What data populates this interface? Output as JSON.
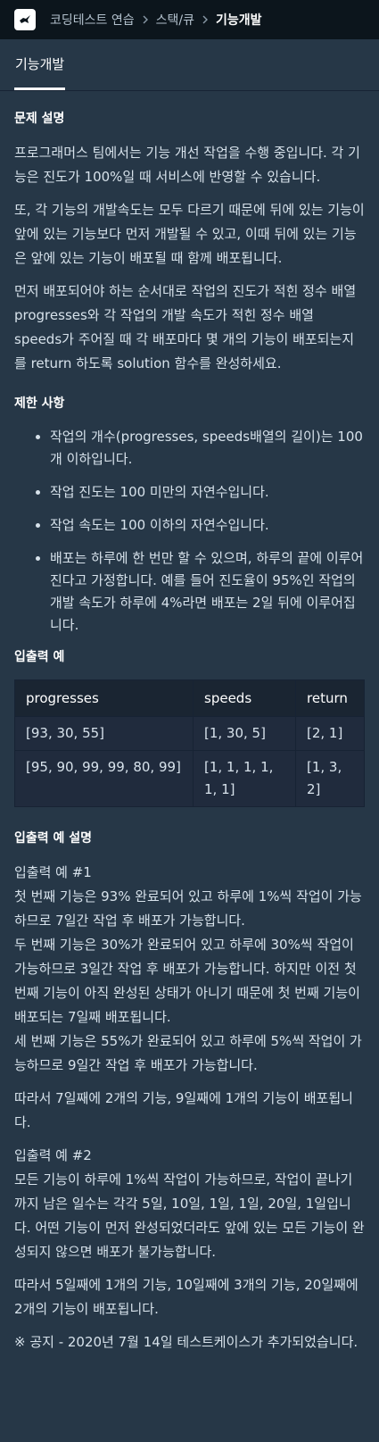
{
  "breadcrumb": {
    "items": [
      "코딩테스트 연습",
      "스택/큐",
      "기능개발"
    ]
  },
  "tab": {
    "label": "기능개발"
  },
  "problem": {
    "heading": "문제 설명",
    "paragraphs": [
      "프로그래머스 팀에서는 기능 개선 작업을 수행 중입니다. 각 기능은 진도가 100%일 때 서비스에 반영할 수 있습니다.",
      "또, 각 기능의 개발속도는 모두 다르기 때문에 뒤에 있는 기능이 앞에 있는 기능보다 먼저 개발될 수 있고, 이때 뒤에 있는 기능은 앞에 있는 기능이 배포될 때 함께 배포됩니다.",
      "먼저 배포되어야 하는 순서대로 작업의 진도가 적힌 정수 배열 progresses와 각 작업의 개발 속도가 적힌 정수 배열 speeds가 주어질 때 각 배포마다 몇 개의 기능이 배포되는지를 return 하도록 solution 함수를 완성하세요."
    ]
  },
  "constraints": {
    "heading": "제한 사항",
    "items": [
      "작업의 개수(progresses, speeds배열의 길이)는 100개 이하입니다.",
      "작업 진도는 100 미만의 자연수입니다.",
      "작업 속도는 100 이하의 자연수입니다.",
      "배포는 하루에 한 번만 할 수 있으며, 하루의 끝에 이루어진다고 가정합니다. 예를 들어 진도율이 95%인 작업의 개발 속도가 하루에 4%라면 배포는 2일 뒤에 이루어집니다."
    ]
  },
  "examples": {
    "heading": "입출력 예",
    "columns": [
      "progresses",
      "speeds",
      "return"
    ],
    "rows": [
      [
        "[93, 30, 55]",
        "[1, 30, 5]",
        "[2, 1]"
      ],
      [
        "[95, 90, 99, 99, 80, 99]",
        "[1, 1, 1, 1, 1, 1]",
        "[1, 3, 2]"
      ]
    ]
  },
  "explanation": {
    "heading": "입출력 예 설명",
    "example1": {
      "title": "입출력 예 #1",
      "lines": [
        "첫 번째 기능은 93% 완료되어 있고 하루에 1%씩 작업이 가능하므로 7일간 작업 후 배포가 가능합니다.",
        "두 번째 기능은 30%가 완료되어 있고 하루에 30%씩 작업이 가능하므로 3일간 작업 후 배포가 가능합니다. 하지만 이전 첫 번째 기능이 아직 완성된 상태가 아니기 때문에 첫 번째 기능이 배포되는 7일째 배포됩니다.",
        "세 번째 기능은 55%가 완료되어 있고 하루에 5%씩 작업이 가능하므로 9일간 작업 후 배포가 가능합니다."
      ],
      "conclusion": "따라서 7일째에 2개의 기능, 9일째에 1개의 기능이 배포됩니다."
    },
    "example2": {
      "title": "입출력 예 #2",
      "lines": [
        "모든 기능이 하루에 1%씩 작업이 가능하므로, 작업이 끝나기까지 남은 일수는 각각 5일, 10일, 1일, 1일, 20일, 1일입니다. 어떤 기능이 먼저 완성되었더라도 앞에 있는 모든 기능이 완성되지 않으면 배포가 불가능합니다."
      ],
      "conclusion": "따라서 5일째에 1개의 기능, 10일째에 3개의 기능, 20일째에 2개의 기능이 배포됩니다."
    },
    "notice": "※ 공지 - 2020년 7월 14일 테스트케이스가 추가되었습니다."
  },
  "colors": {
    "topbar": "#0c151c",
    "background": "#263747",
    "text": "#d7e2eb",
    "table_header": "#1a2532",
    "table_cell": "#202b3d"
  }
}
